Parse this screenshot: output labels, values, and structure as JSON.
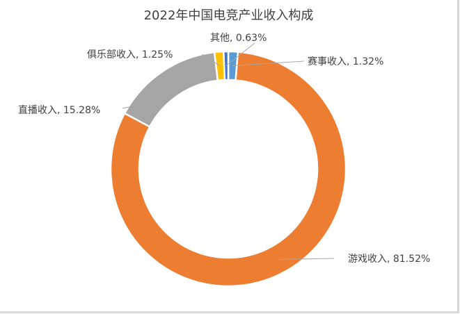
{
  "chart_data": {
    "type": "pie",
    "variant": "doughnut",
    "title": "2022年中国电竞产业收入构成",
    "categories": [
      "赛事收入",
      "游戏收入",
      "直播收入",
      "俱乐部收入",
      "其他"
    ],
    "values": [
      1.32,
      81.52,
      15.28,
      1.25,
      0.63
    ],
    "unit": "%",
    "colors": [
      "#5b9bd5",
      "#ed7d31",
      "#a5a5a5",
      "#ffc000",
      "#4472c4"
    ],
    "labels": [
      "赛事收入, 1.32%",
      "游戏收入, 81.52%",
      "直播收入, 15.28%",
      "俱乐部收入, 1.25%",
      "其他, 0.63%"
    ],
    "start_angle_deg": 0,
    "direction": "clockwise",
    "legend": "none",
    "data_labels": "outside with leader lines"
  }
}
